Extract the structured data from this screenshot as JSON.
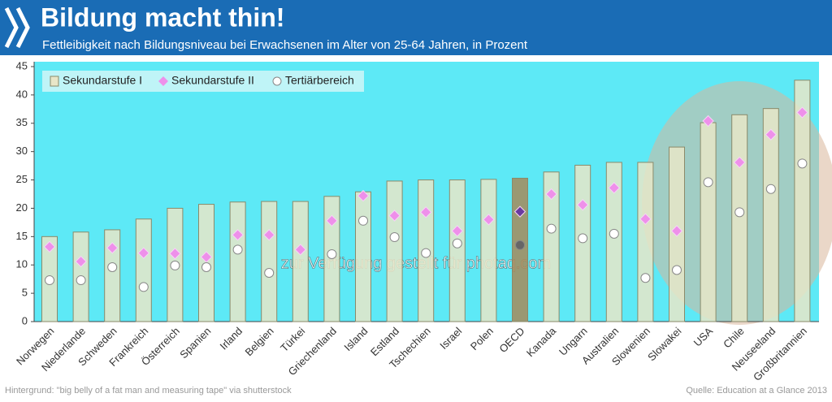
{
  "header": {
    "title": "Bildung macht thin!",
    "subtitle": "Fettleibigkeit nach Bildungsniveau bei Erwachsenen im Alter von 25-64 Jahren, in Prozent"
  },
  "chart_data": {
    "type": "bar_dots",
    "categories": [
      "Norwegen",
      "Niederlande",
      "Schweden",
      "Frankreich",
      "Österreich",
      "Spanien",
      "Irland",
      "Belgien",
      "Türkei",
      "Griechenland",
      "Island",
      "Estland",
      "Tschechien",
      "Israel",
      "Polen",
      "OECD",
      "Kanada",
      "Ungarn",
      "Australien",
      "Slowenien",
      "Slowakei",
      "USA",
      "Chile",
      "Neuseeland",
      "Großbritannien"
    ],
    "highlight_categories": [
      "OECD"
    ],
    "series": [
      {
        "name": "Sekundarstufe I",
        "mark": "bar",
        "color": "#e8e6c8",
        "highlight_color": "#a58a5a",
        "values": [
          15.0,
          15.8,
          16.2,
          18.1,
          20.0,
          20.7,
          21.1,
          21.2,
          21.2,
          22.1,
          22.9,
          24.8,
          25.0,
          25.0,
          25.1,
          25.3,
          26.4,
          27.6,
          28.1,
          28.1,
          30.8,
          35.1,
          36.5,
          37.6,
          42.6
        ]
      },
      {
        "name": "Sekundarstufe II",
        "mark": "diamond",
        "color": "#ee90ea",
        "highlight_color": "#6a3aa0",
        "values": [
          13.2,
          10.6,
          13.0,
          12.1,
          12.0,
          11.4,
          15.3,
          15.3,
          12.7,
          17.8,
          22.2,
          18.7,
          19.3,
          16.0,
          18.0,
          19.4,
          22.5,
          20.6,
          23.6,
          18.1,
          16.0,
          35.4,
          28.1,
          33.0,
          36.9
        ]
      },
      {
        "name": "Tertiärbereich",
        "mark": "circle",
        "color": "#ffffff",
        "highlight_color": "#666666",
        "values": [
          7.3,
          7.3,
          9.6,
          6.1,
          9.9,
          9.6,
          12.7,
          8.6,
          null,
          11.9,
          17.8,
          14.9,
          12.1,
          13.8,
          null,
          13.5,
          16.4,
          14.7,
          15.5,
          7.7,
          9.1,
          24.6,
          19.3,
          23.4,
          27.9
        ]
      }
    ],
    "ylim": [
      0,
      45
    ],
    "yticks": [
      0,
      5,
      10,
      15,
      20,
      25,
      30,
      35,
      40,
      45
    ],
    "grid": false,
    "legend": "top-left",
    "background": "#5de9f6"
  },
  "footer": {
    "watermark": "zur Verfügung gestellt für photaq.com",
    "background_credit": "Hintergrund: \"big belly of a fat man and measuring tape\" via shutterstock",
    "source": "Quelle: Education at a Glance 2013"
  }
}
